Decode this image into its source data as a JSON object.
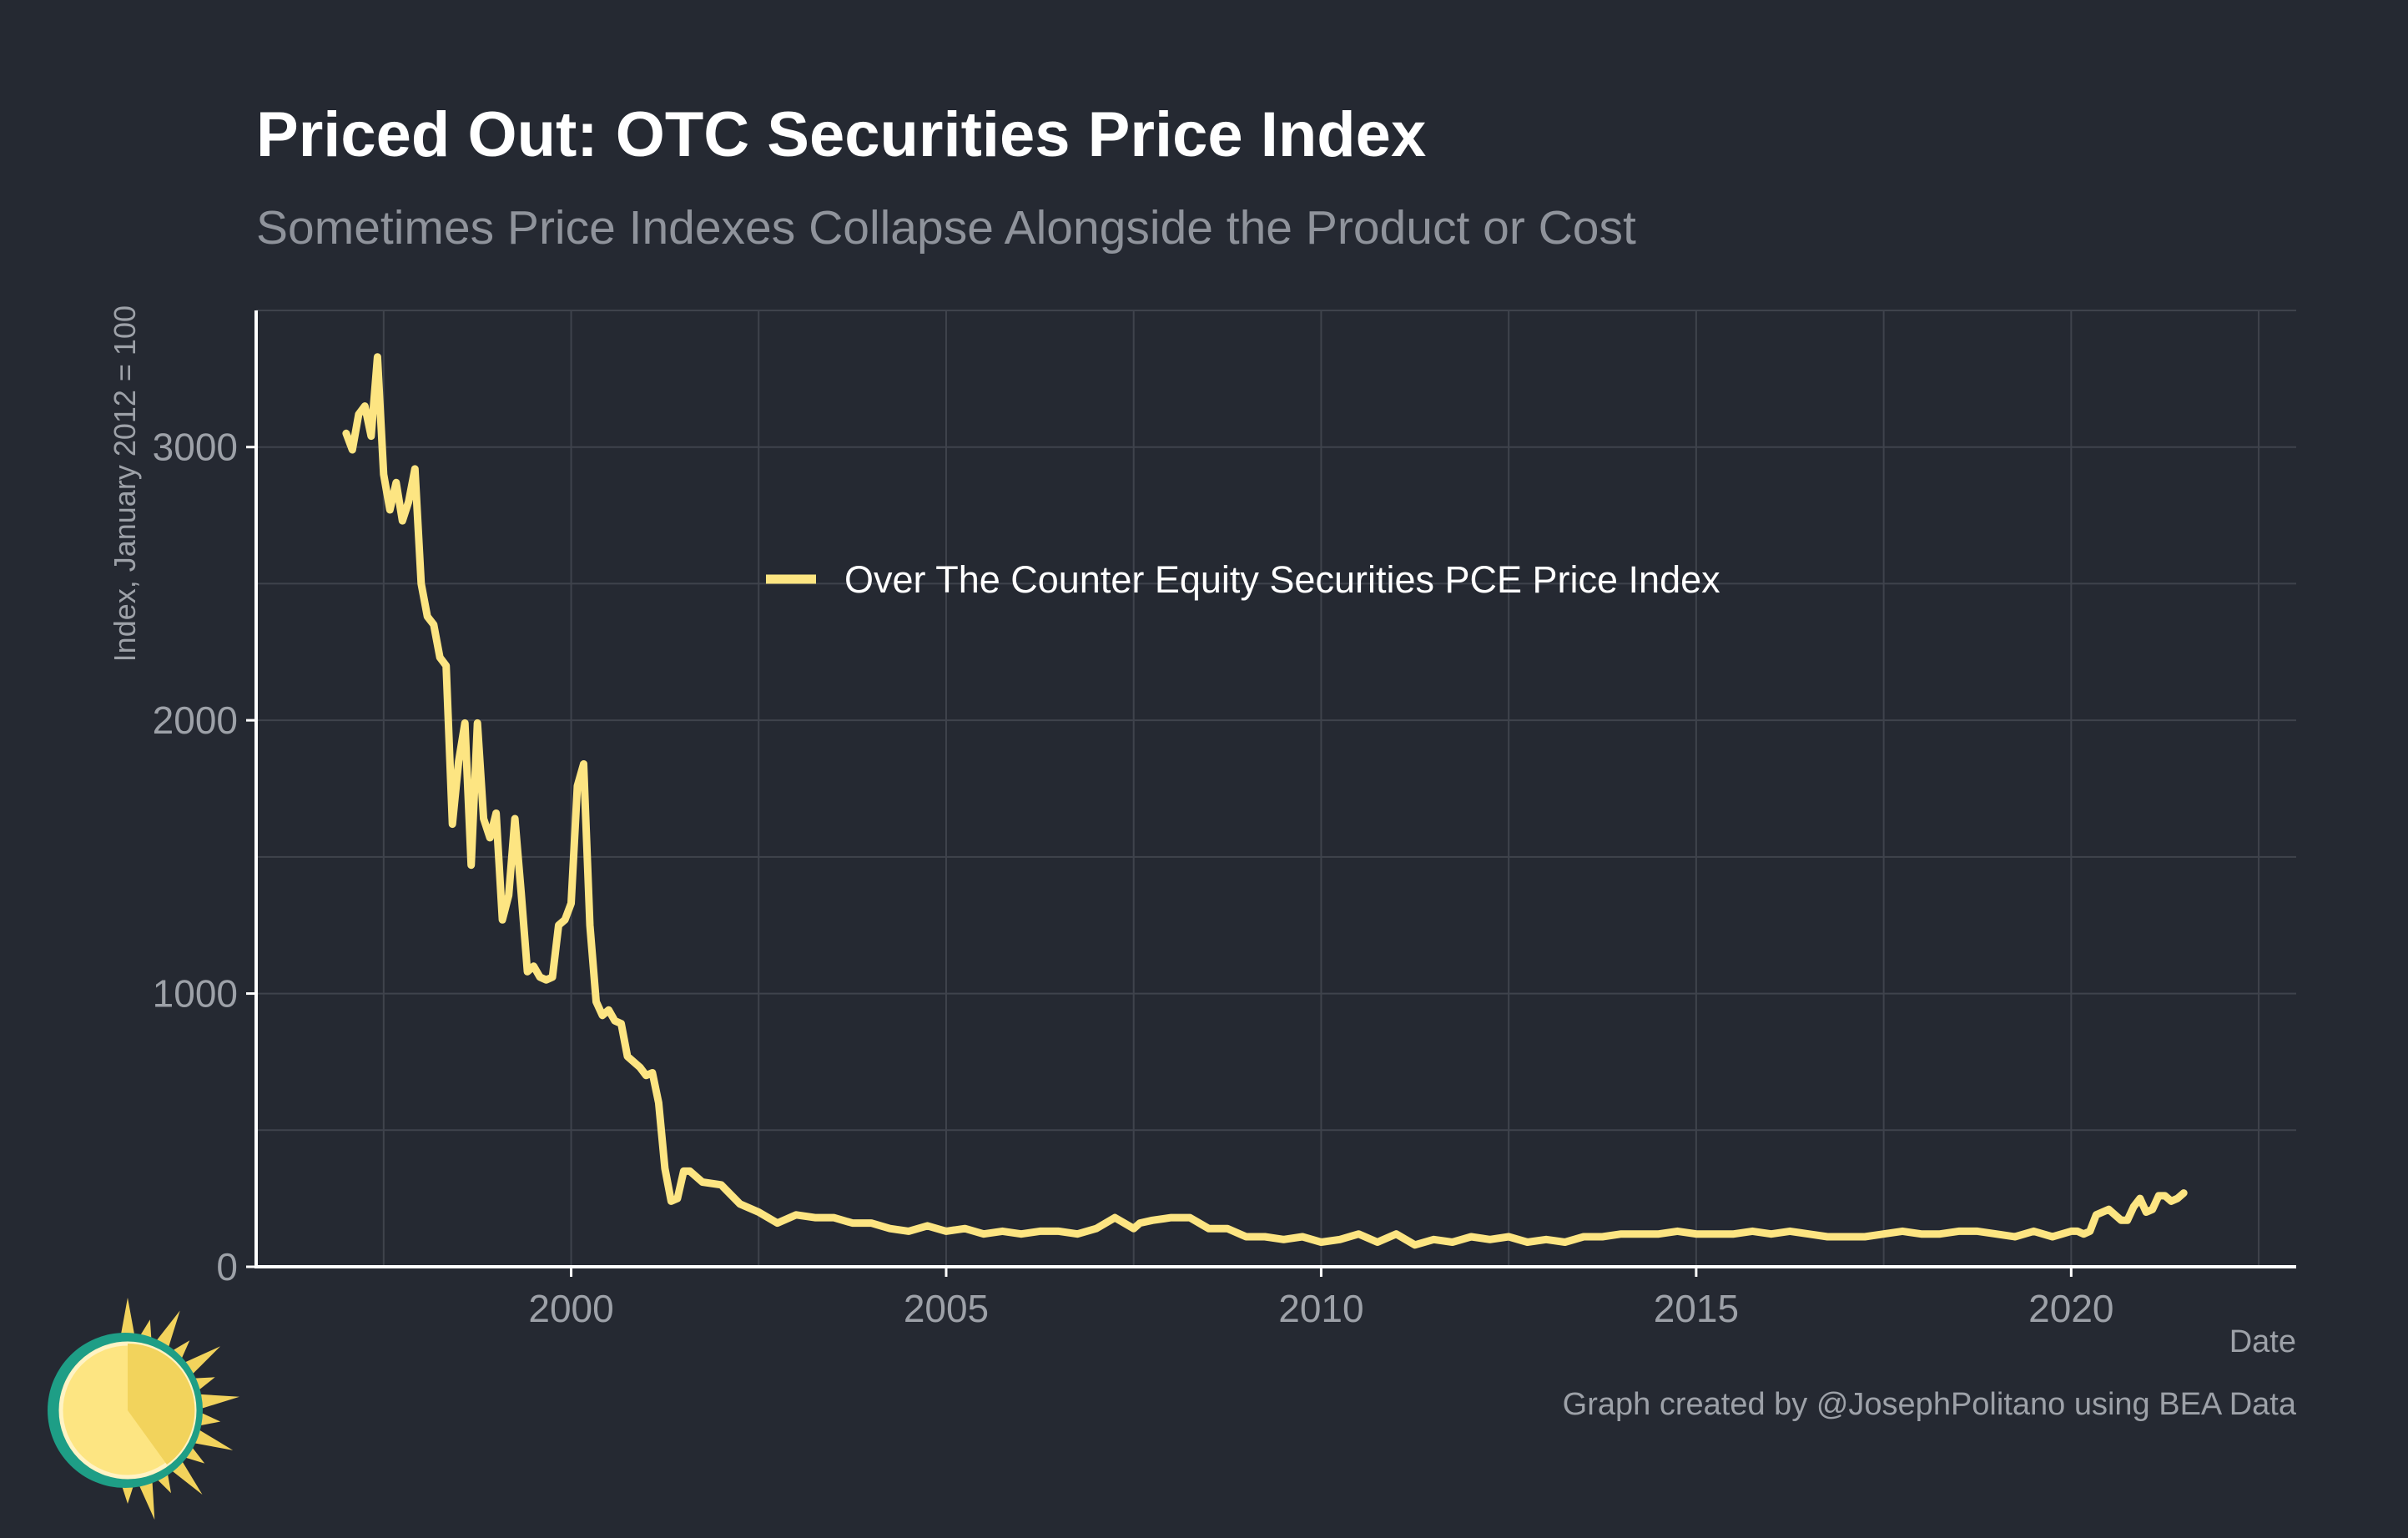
{
  "title": "Priced Out: OTC Securities Price Index",
  "subtitle": "Sometimes Price Indexes Collapse Alongside the Product or Cost",
  "caption": "Graph created by @JosephPolitano using BEA Data",
  "colors": {
    "background": "#252932",
    "line": "#fde582",
    "grid": "#3f434c",
    "axis": "#ffffff",
    "tick_label": "#9da1a8",
    "logo_teal": "#1e9e86",
    "logo_sun": "#fde582",
    "logo_sun_dark": "#f2d35c"
  },
  "chart_data": {
    "type": "line",
    "title": "Priced Out: OTC Securities Price Index",
    "subtitle": "Sometimes Price Indexes Collapse Alongside the Product or Cost",
    "xlabel": "Date",
    "ylabel": "Index, January 2012 = 100",
    "xlim": [
      1995.8,
      2023.0
    ],
    "ylim": [
      0,
      3500
    ],
    "x_ticks": [
      2000,
      2005,
      2010,
      2015,
      2020
    ],
    "x_tick_labels": [
      "2000",
      "2005",
      "2010",
      "2015",
      "2020"
    ],
    "y_ticks": [
      0,
      1000,
      2000,
      3000
    ],
    "y_tick_labels": [
      "0",
      "1000",
      "2000",
      "3000"
    ],
    "grid": true,
    "legend_position": "top-center",
    "series": [
      {
        "name": "Over The Counter Equity Securities PCE Price Index",
        "color": "#fde582",
        "x": [
          1997.0,
          1997.083,
          1997.167,
          1997.25,
          1997.333,
          1997.417,
          1997.5,
          1997.583,
          1997.667,
          1997.75,
          1997.833,
          1997.917,
          1998.0,
          1998.083,
          1998.167,
          1998.25,
          1998.333,
          1998.417,
          1998.5,
          1998.583,
          1998.667,
          1998.75,
          1998.833,
          1998.917,
          1999.0,
          1999.083,
          1999.167,
          1999.25,
          1999.333,
          1999.417,
          1999.5,
          1999.583,
          1999.667,
          1999.75,
          1999.833,
          1999.917,
          2000.0,
          2000.083,
          2000.167,
          2000.25,
          2000.333,
          2000.417,
          2000.5,
          2000.583,
          2000.667,
          2000.75,
          2000.833,
          2000.917,
          2001.0,
          2001.083,
          2001.167,
          2001.25,
          2001.333,
          2001.417,
          2001.5,
          2001.583,
          2001.75,
          2002.0,
          2002.25,
          2002.5,
          2002.75,
          2003.0,
          2003.25,
          2003.5,
          2003.75,
          2004.0,
          2004.25,
          2004.5,
          2004.75,
          2005.0,
          2005.25,
          2005.5,
          2005.75,
          2006.0,
          2006.25,
          2006.5,
          2006.75,
          2007.0,
          2007.25,
          2007.5,
          2007.583,
          2007.75,
          2008.0,
          2008.25,
          2008.5,
          2008.75,
          2009.0,
          2009.25,
          2009.5,
          2009.75,
          2010.0,
          2010.25,
          2010.5,
          2010.75,
          2011.0,
          2011.25,
          2011.5,
          2011.75,
          2012.0,
          2012.25,
          2012.5,
          2012.75,
          2013.0,
          2013.25,
          2013.5,
          2013.75,
          2014.0,
          2014.25,
          2014.5,
          2014.75,
          2015.0,
          2015.25,
          2015.5,
          2015.75,
          2016.0,
          2016.25,
          2016.5,
          2016.75,
          2017.0,
          2017.25,
          2017.5,
          2017.75,
          2018.0,
          2018.25,
          2018.5,
          2018.75,
          2019.0,
          2019.25,
          2019.5,
          2019.75,
          2020.0,
          2020.083,
          2020.167,
          2020.25,
          2020.333,
          2020.5,
          2020.667,
          2020.75,
          2020.833,
          2020.917,
          2021.0,
          2021.083,
          2021.167,
          2021.25,
          2021.333,
          2021.417,
          2021.5
        ],
        "y": [
          3050,
          2990,
          3120,
          3150,
          3040,
          3330,
          2900,
          2770,
          2870,
          2730,
          2800,
          2920,
          2500,
          2380,
          2350,
          2230,
          2200,
          1620,
          1850,
          1990,
          1470,
          1990,
          1640,
          1570,
          1660,
          1270,
          1360,
          1640,
          1370,
          1080,
          1100,
          1060,
          1050,
          1060,
          1250,
          1270,
          1330,
          1760,
          1840,
          1250,
          970,
          920,
          940,
          900,
          890,
          770,
          750,
          730,
          700,
          710,
          600,
          360,
          240,
          250,
          350,
          350,
          310,
          300,
          230,
          200,
          160,
          190,
          180,
          180,
          160,
          160,
          140,
          130,
          150,
          130,
          140,
          120,
          130,
          120,
          130,
          130,
          120,
          140,
          180,
          140,
          160,
          170,
          180,
          180,
          140,
          140,
          110,
          110,
          100,
          110,
          90,
          100,
          120,
          90,
          120,
          80,
          100,
          90,
          110,
          100,
          110,
          90,
          100,
          90,
          110,
          110,
          120,
          120,
          120,
          130,
          120,
          120,
          120,
          130,
          120,
          130,
          120,
          110,
          110,
          110,
          120,
          130,
          120,
          120,
          130,
          130,
          120,
          110,
          130,
          110,
          130,
          130,
          120,
          130,
          190,
          210,
          170,
          170,
          220,
          250,
          200,
          210,
          260,
          260,
          240,
          250,
          270
        ]
      }
    ]
  }
}
